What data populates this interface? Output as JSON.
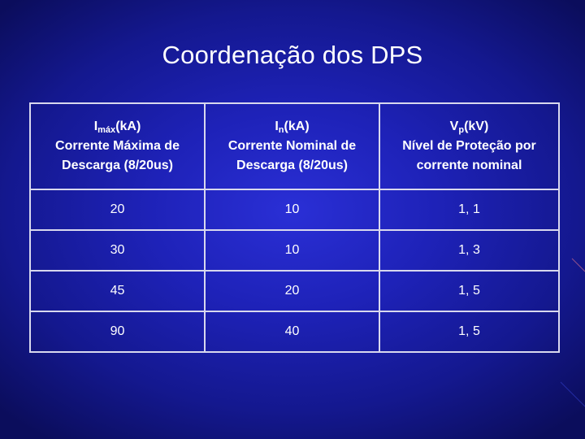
{
  "title": "Coordenação dos DPS",
  "table": {
    "headers": [
      {
        "symbol": "I",
        "sub": "máx",
        "unit": "(kA)",
        "line2": "Corrente Máxima de",
        "line3": "Descarga (8/20us)"
      },
      {
        "symbol": "I",
        "sub": "n",
        "unit": "(kA)",
        "line2": "Corrente Nominal de",
        "line3": "Descarga (8/20us)"
      },
      {
        "symbol": "V",
        "sub": "p",
        "unit": "(kV)",
        "line2": "Nível de Proteção por",
        "line3": "corrente nominal"
      }
    ],
    "rows": [
      [
        "20",
        "10",
        "1, 1"
      ],
      [
        "30",
        "10",
        "1, 3"
      ],
      [
        "45",
        "20",
        "1, 5"
      ],
      [
        "90",
        "40",
        "1, 5"
      ]
    ]
  },
  "colors": {
    "background": "#1e22b8",
    "text": "#ffffff",
    "grid": "#d8d8ee"
  }
}
